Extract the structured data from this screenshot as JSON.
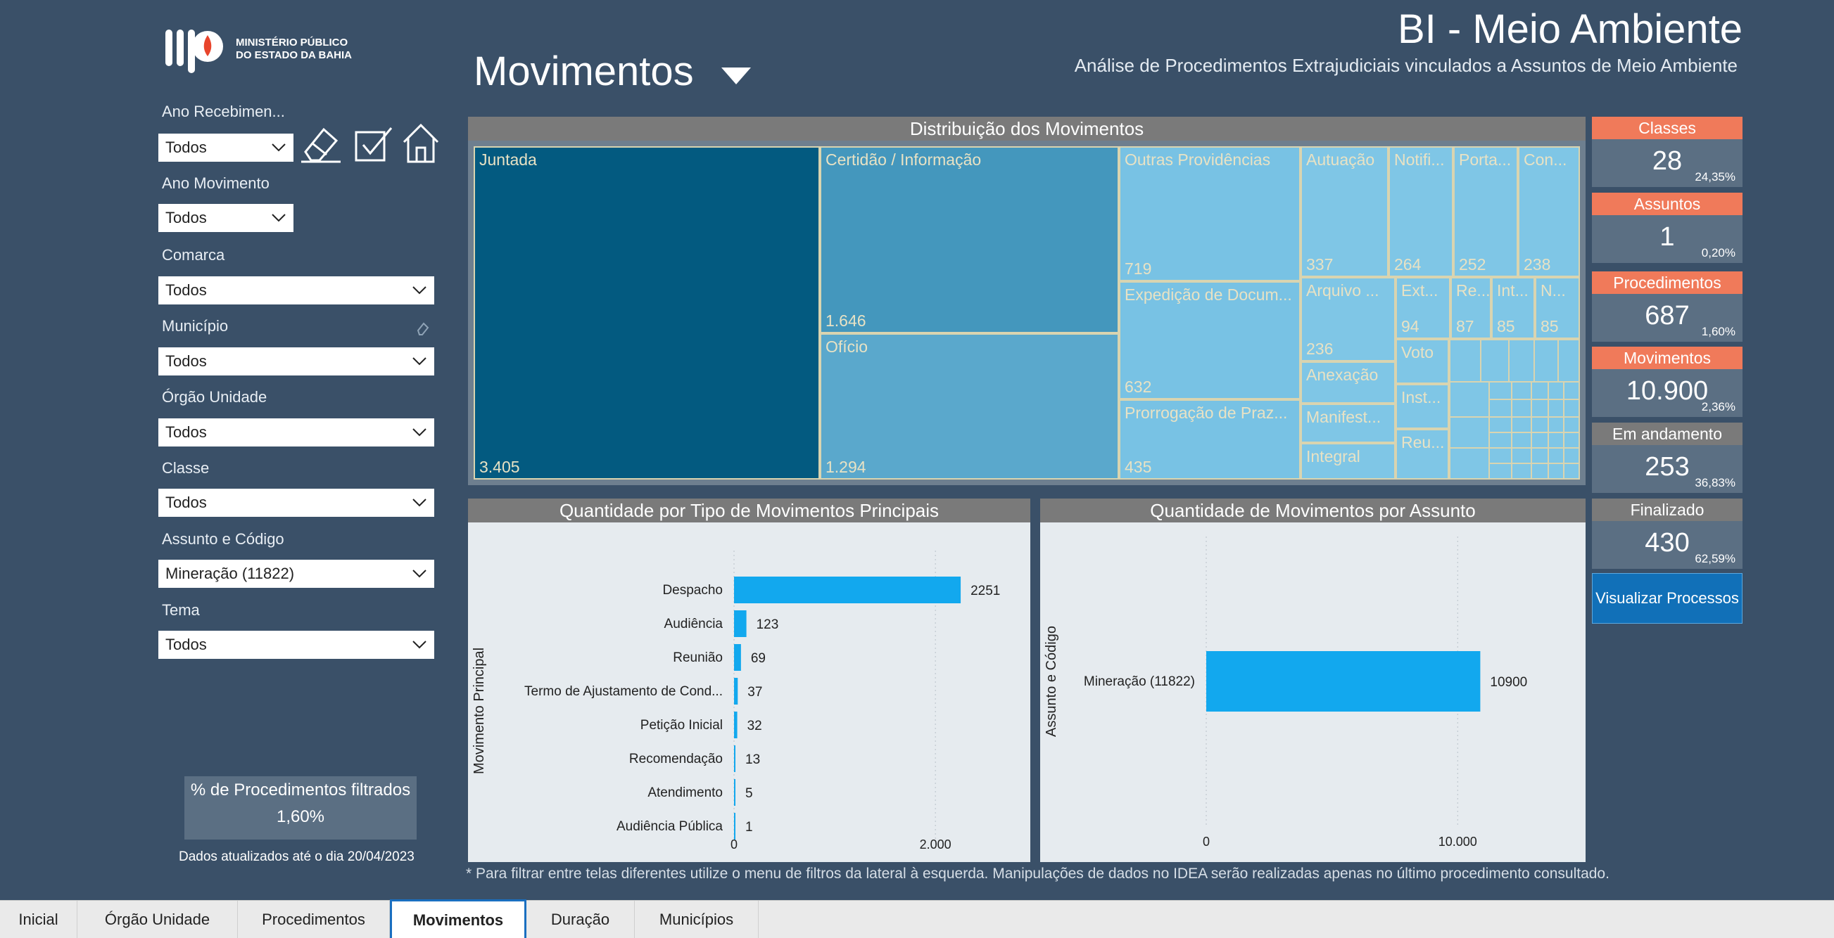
{
  "header": {
    "logo_line1": "MINISTÉRIO PÚBLICO",
    "logo_line2": "DO ESTADO DA BAHIA",
    "title": "BI - Meio Ambiente",
    "subtitle": "Análise de Procedimentos Extrajudiciais vinculados a Assuntos de Meio Ambiente",
    "page_title": "Movimentos"
  },
  "filters": [
    {
      "label": "Ano Recebimen...",
      "value": "Todos"
    },
    {
      "label": "Ano Movimento",
      "value": "Todos"
    },
    {
      "label": "Comarca",
      "value": "Todos"
    },
    {
      "label": "Município",
      "value": "Todos"
    },
    {
      "label": "Órgão Unidade",
      "value": "Todos"
    },
    {
      "label": "Classe",
      "value": "Todos"
    },
    {
      "label": "Assunto e Código",
      "value": "Mineração (11822)"
    },
    {
      "label": "Tema",
      "value": "Todos"
    }
  ],
  "pct_box": {
    "label": "% de Procedimentos filtrados",
    "value": "1,60%"
  },
  "updated": "Dados atualizados até o dia 20/04/2023",
  "treemap": {
    "title": "Distribuição dos Movimentos",
    "items": [
      {
        "label": "Juntada",
        "value": "3.405"
      },
      {
        "label": "Certidão / Informação",
        "value": "1.646"
      },
      {
        "label": "Ofício",
        "value": "1.294"
      },
      {
        "label": "Outras Providências",
        "value": "719"
      },
      {
        "label": "Expedição de Docum...",
        "value": "632"
      },
      {
        "label": "Prorrogação de Praz...",
        "value": "435"
      },
      {
        "label": "Autuação",
        "value": "337"
      },
      {
        "label": "Notifi...",
        "value": "264"
      },
      {
        "label": "Porta...",
        "value": "252"
      },
      {
        "label": "Con...",
        "value": "238"
      },
      {
        "label": "Arquivo ...",
        "value": "236"
      },
      {
        "label": "Ext...",
        "value": "94"
      },
      {
        "label": "Re...",
        "value": "87"
      },
      {
        "label": "Int...",
        "value": "85"
      },
      {
        "label": "N...",
        "value": "85"
      },
      {
        "label": "Anexação",
        "value": ""
      },
      {
        "label": "Manifest...",
        "value": ""
      },
      {
        "label": "Integral",
        "value": ""
      },
      {
        "label": "Voto",
        "value": ""
      },
      {
        "label": "Inst...",
        "value": ""
      },
      {
        "label": "Reu...",
        "value": ""
      }
    ]
  },
  "chart_data": [
    {
      "type": "bar",
      "title": "Quantidade por Tipo de Movimentos Principais",
      "ylabel": "Movimento Principal",
      "categories": [
        "Despacho",
        "Audiência",
        "Reunião",
        "Termo de Ajustamento de Cond...",
        "Petição Inicial",
        "Recomendação",
        "Atendimento",
        "Audiência Pública"
      ],
      "values": [
        2251,
        123,
        69,
        37,
        32,
        13,
        5,
        1
      ],
      "xticks": [
        "0",
        "2.000"
      ],
      "xlim": [
        0,
        2600
      ]
    },
    {
      "type": "bar",
      "title": "Quantidade de Movimentos por Assunto",
      "ylabel": "Assunto e Código",
      "categories": [
        "Mineração (11822)"
      ],
      "values": [
        10900
      ],
      "xticks": [
        "0",
        "10.000"
      ],
      "xlim": [
        0,
        14500
      ]
    }
  ],
  "kpis": [
    {
      "label": "Classes",
      "value": "28",
      "pct": "24,35%",
      "color": "#f07a5a"
    },
    {
      "label": "Assuntos",
      "value": "1",
      "pct": "0,20%",
      "color": "#f07a5a"
    },
    {
      "label": "Procedimentos",
      "value": "687",
      "pct": "1,60%",
      "color": "#f07a5a"
    },
    {
      "label": "Movimentos",
      "value": "10.900",
      "pct": "2,36%",
      "color": "#f07a5a"
    },
    {
      "label": "Em andamento",
      "value": "253",
      "pct": "36,83%",
      "color": "#7a7a7a"
    },
    {
      "label": "Finalizado",
      "value": "430",
      "pct": "62,59%",
      "color": "#7a7a7a"
    }
  ],
  "view_button": "Visualizar Processos",
  "footnote": "* Para filtrar entre telas diferentes utilize o menu de filtros da lateral à esquerda.  Manipulações de dados no IDEA serão realizadas apenas no último procedimento consultado.",
  "tabs": [
    "Inicial",
    "Órgão Unidade",
    "Procedimentos",
    "Movimentos",
    "Duração",
    "Municípios"
  ],
  "active_tab": "Movimentos"
}
